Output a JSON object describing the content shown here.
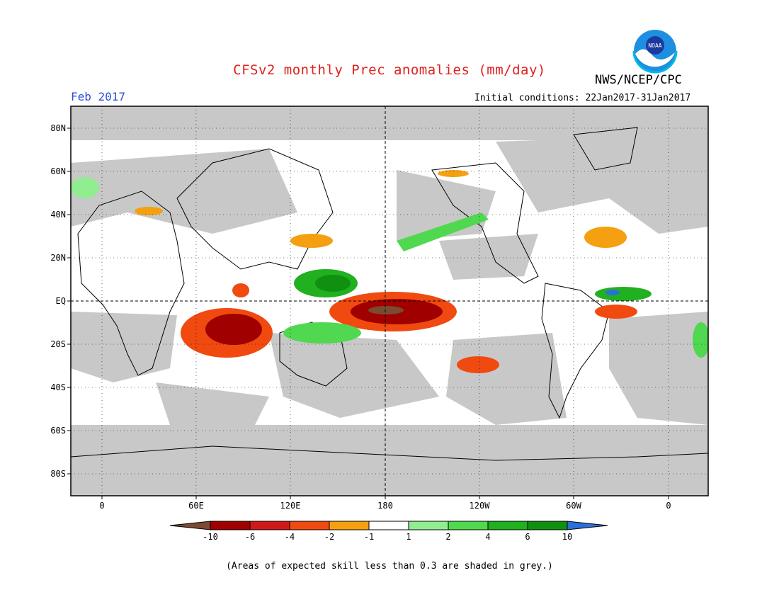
{
  "header": {
    "title": "CFSv2 monthly Prec anomalies (mm/day)",
    "agency": "NWS/NCEP/CPC",
    "logo_text": "NOAA",
    "valid_month": "Feb 2017",
    "initial_conditions": "Initial conditions: 22Jan2017-31Jan2017"
  },
  "map": {
    "lat_labels": [
      "80N",
      "60N",
      "40N",
      "20N",
      "EQ",
      "20S",
      "40S",
      "60S",
      "80S"
    ],
    "lon_labels": [
      "0",
      "60E",
      "120E",
      "180",
      "120W",
      "60W",
      "0"
    ],
    "skill_mask_color": "#c8c8c8",
    "ocean_color": "#ffffff"
  },
  "colorbar": {
    "tick_labels": [
      "-10",
      "-6",
      "-4",
      "-2",
      "-1",
      "1",
      "2",
      "4",
      "6",
      "10"
    ],
    "colors": [
      "#7a4a32",
      "#a00000",
      "#d01818",
      "#f04a10",
      "#f4a010",
      "#ffffff",
      "#90ee90",
      "#50d850",
      "#20b020",
      "#109010",
      "#2a70d8"
    ]
  },
  "footnote": "(Areas of expected skill less than 0.3 are shaded in grey.)"
}
